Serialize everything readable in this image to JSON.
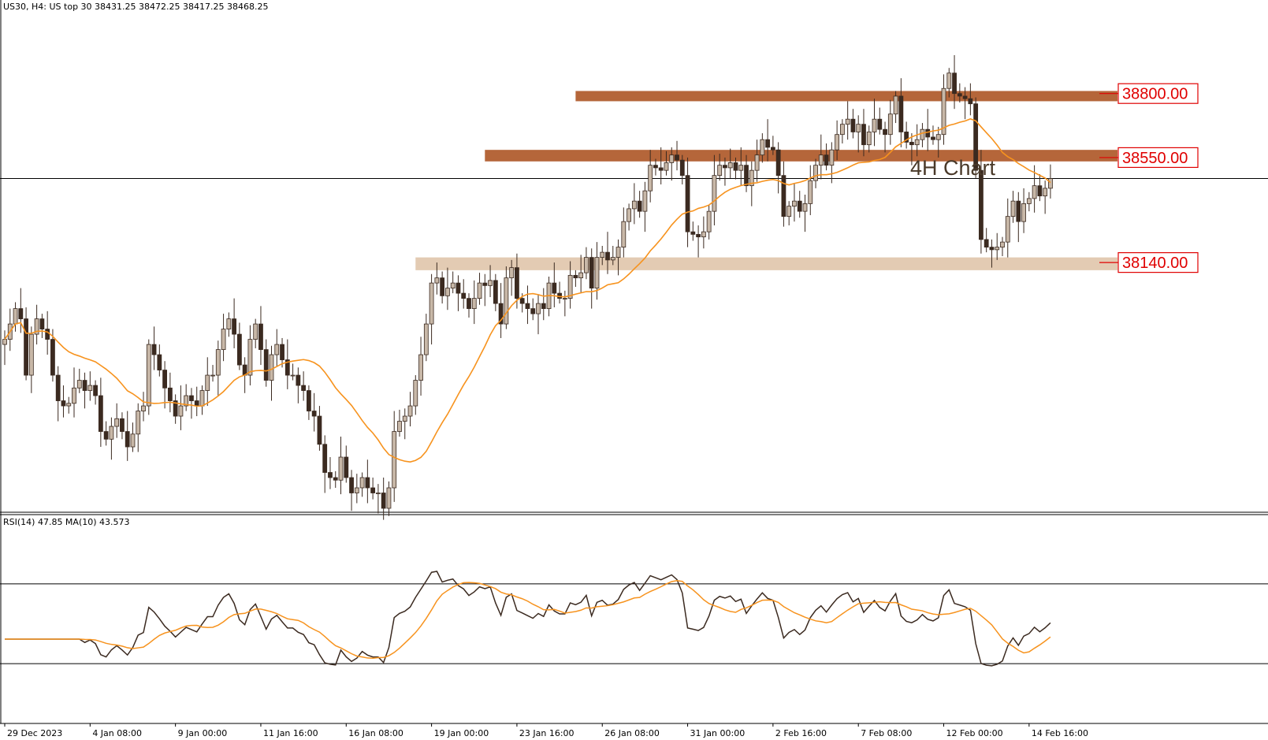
{
  "header": {
    "symbol_line": "US30, H4:  US top 30  38431.25 38472.25 38417.25 38468.25",
    "rsi_line": "RSI(14) 47.85 MA(10) 43.573"
  },
  "annotation": "4H Chart",
  "colors": {
    "candle_up_fill": "#c8b8a8",
    "candle_down_fill": "#3b2a20",
    "ma_line": "#f7931e",
    "zone_strong": "#b5663a",
    "zone_light": "#d9b99a",
    "level_text": "#e00000",
    "rsi_line": "#3b2a20",
    "rsi_ma_line": "#f7931e"
  },
  "chart_data": {
    "type": "candlestick",
    "symbol": "US30",
    "timeframe": "H4",
    "ylim": [
      37180,
      39150
    ],
    "levels": [
      {
        "label": "38800.00",
        "value": 38800,
        "zone": [
          38770,
          38810
        ],
        "zone_from": 107
      },
      {
        "label": "38550.00",
        "value": 38550,
        "zone": [
          38535,
          38580
        ],
        "zone_from": 90
      },
      {
        "label": "38140.00",
        "value": 38140,
        "zone": [
          38110,
          38160
        ],
        "zone_from": 77
      }
    ],
    "current_price": 38468.25,
    "x_tick_labels": [
      "29 Dec 2023",
      "4 Jan 08:00",
      "9 Jan 00:00",
      "11 Jan 16:00",
      "16 Jan 08:00",
      "19 Jan 00:00",
      "23 Jan 16:00",
      "26 Jan 08:00",
      "31 Jan 00:00",
      "2 Feb 16:00",
      "7 Feb 08:00",
      "12 Feb 00:00",
      "14 Feb 16:00"
    ],
    "x_tick_bars": [
      0,
      16,
      32,
      48,
      64,
      80,
      96,
      112,
      128,
      144,
      160,
      176,
      192
    ],
    "closes": [
      37840,
      37900,
      37960,
      37920,
      37700,
      37860,
      37920,
      37880,
      37840,
      37700,
      37600,
      37580,
      37590,
      37650,
      37680,
      37640,
      37660,
      37620,
      37480,
      37450,
      37500,
      37530,
      37480,
      37420,
      37470,
      37560,
      37580,
      37820,
      37780,
      37720,
      37650,
      37600,
      37540,
      37580,
      37620,
      37600,
      37580,
      37640,
      37700,
      37700,
      37800,
      37880,
      37920,
      37860,
      37740,
      37700,
      37840,
      37900,
      37800,
      37680,
      37780,
      37820,
      37760,
      37700,
      37700,
      37660,
      37640,
      37560,
      37540,
      37430,
      37320,
      37300,
      37290,
      37380,
      37300,
      37240,
      37260,
      37300,
      37260,
      37240,
      37240,
      37180,
      37260,
      37480,
      37520,
      37540,
      37580,
      37680,
      37780,
      37900,
      38060,
      38080,
      38010,
      38040,
      38060,
      38020,
      38000,
      37960,
      38000,
      38060,
      38050,
      38070,
      37980,
      37900,
      38080,
      38120,
      38000,
      37980,
      37960,
      37940,
      37980,
      37960,
      38060,
      38020,
      38000,
      38000,
      38090,
      38080,
      38100,
      38160,
      38040,
      38160,
      38180,
      38150,
      38160,
      38200,
      38300,
      38350,
      38380,
      38340,
      38420,
      38520,
      38510,
      38500,
      38530,
      38560,
      38540,
      38480,
      38260,
      38250,
      38240,
      38260,
      38340,
      38480,
      38520,
      38510,
      38530,
      38500,
      38520,
      38440,
      38500,
      38560,
      38620,
      38590,
      38580,
      38480,
      38320,
      38360,
      38380,
      38340,
      38370,
      38460,
      38520,
      38560,
      38520,
      38580,
      38640,
      38680,
      38700,
      38650,
      38680,
      38600,
      38650,
      38700,
      38660,
      38640,
      38720,
      38790,
      38650,
      38610,
      38600,
      38620,
      38660,
      38630,
      38620,
      38640,
      38820,
      38880,
      38800,
      38790,
      38780,
      38760,
      38500,
      38230,
      38200,
      38190,
      38200,
      38220,
      38320,
      38380,
      38300,
      38370,
      38390,
      38440,
      38400,
      38430,
      38468
    ],
    "rsi": {
      "period": 14,
      "ma_period": 10,
      "value": 47.85,
      "ma_value": 43.573,
      "levels": [
        70,
        30
      ],
      "ylim": [
        0,
        100
      ]
    }
  }
}
